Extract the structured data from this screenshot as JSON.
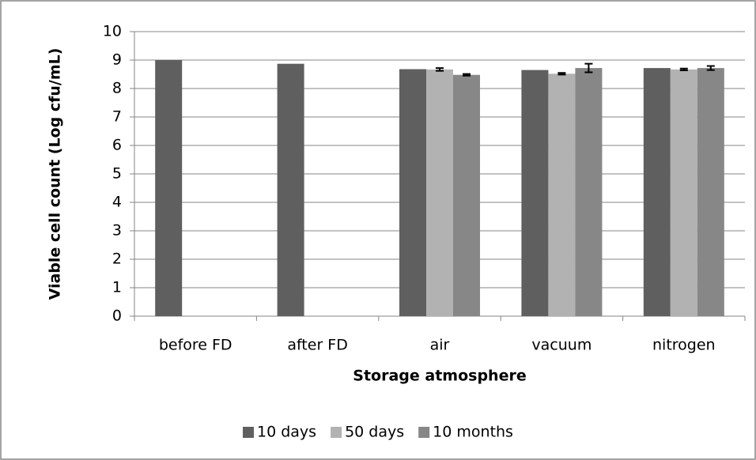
{
  "chart_data": {
    "type": "bar",
    "xlabel": "Storage atmosphere",
    "ylabel": "Viable cell count  (Log cfu/mL)",
    "categories": [
      "before FD",
      "after FD",
      "air",
      "vacuum",
      "nitrogen"
    ],
    "series": [
      {
        "name": "10 days",
        "color": "#5f5f5f",
        "values": [
          9.0,
          8.87,
          8.68,
          8.65,
          8.72
        ],
        "errors": [
          null,
          null,
          null,
          null,
          null
        ]
      },
      {
        "name": "50 days",
        "color": "#b2b2b2",
        "values": [
          null,
          null,
          8.67,
          8.52,
          8.67
        ],
        "errors": [
          null,
          null,
          0.05,
          0.03,
          0.03
        ]
      },
      {
        "name": "10 months",
        "color": "#878787",
        "values": [
          null,
          null,
          8.48,
          8.72,
          8.72
        ],
        "errors": [
          null,
          null,
          0.03,
          0.15,
          0.07
        ]
      }
    ],
    "ylim": [
      0,
      10
    ],
    "yticks": [
      0,
      1,
      2,
      3,
      4,
      5,
      6,
      7,
      8,
      9,
      10
    ],
    "grid": true,
    "legend": "bottom"
  }
}
